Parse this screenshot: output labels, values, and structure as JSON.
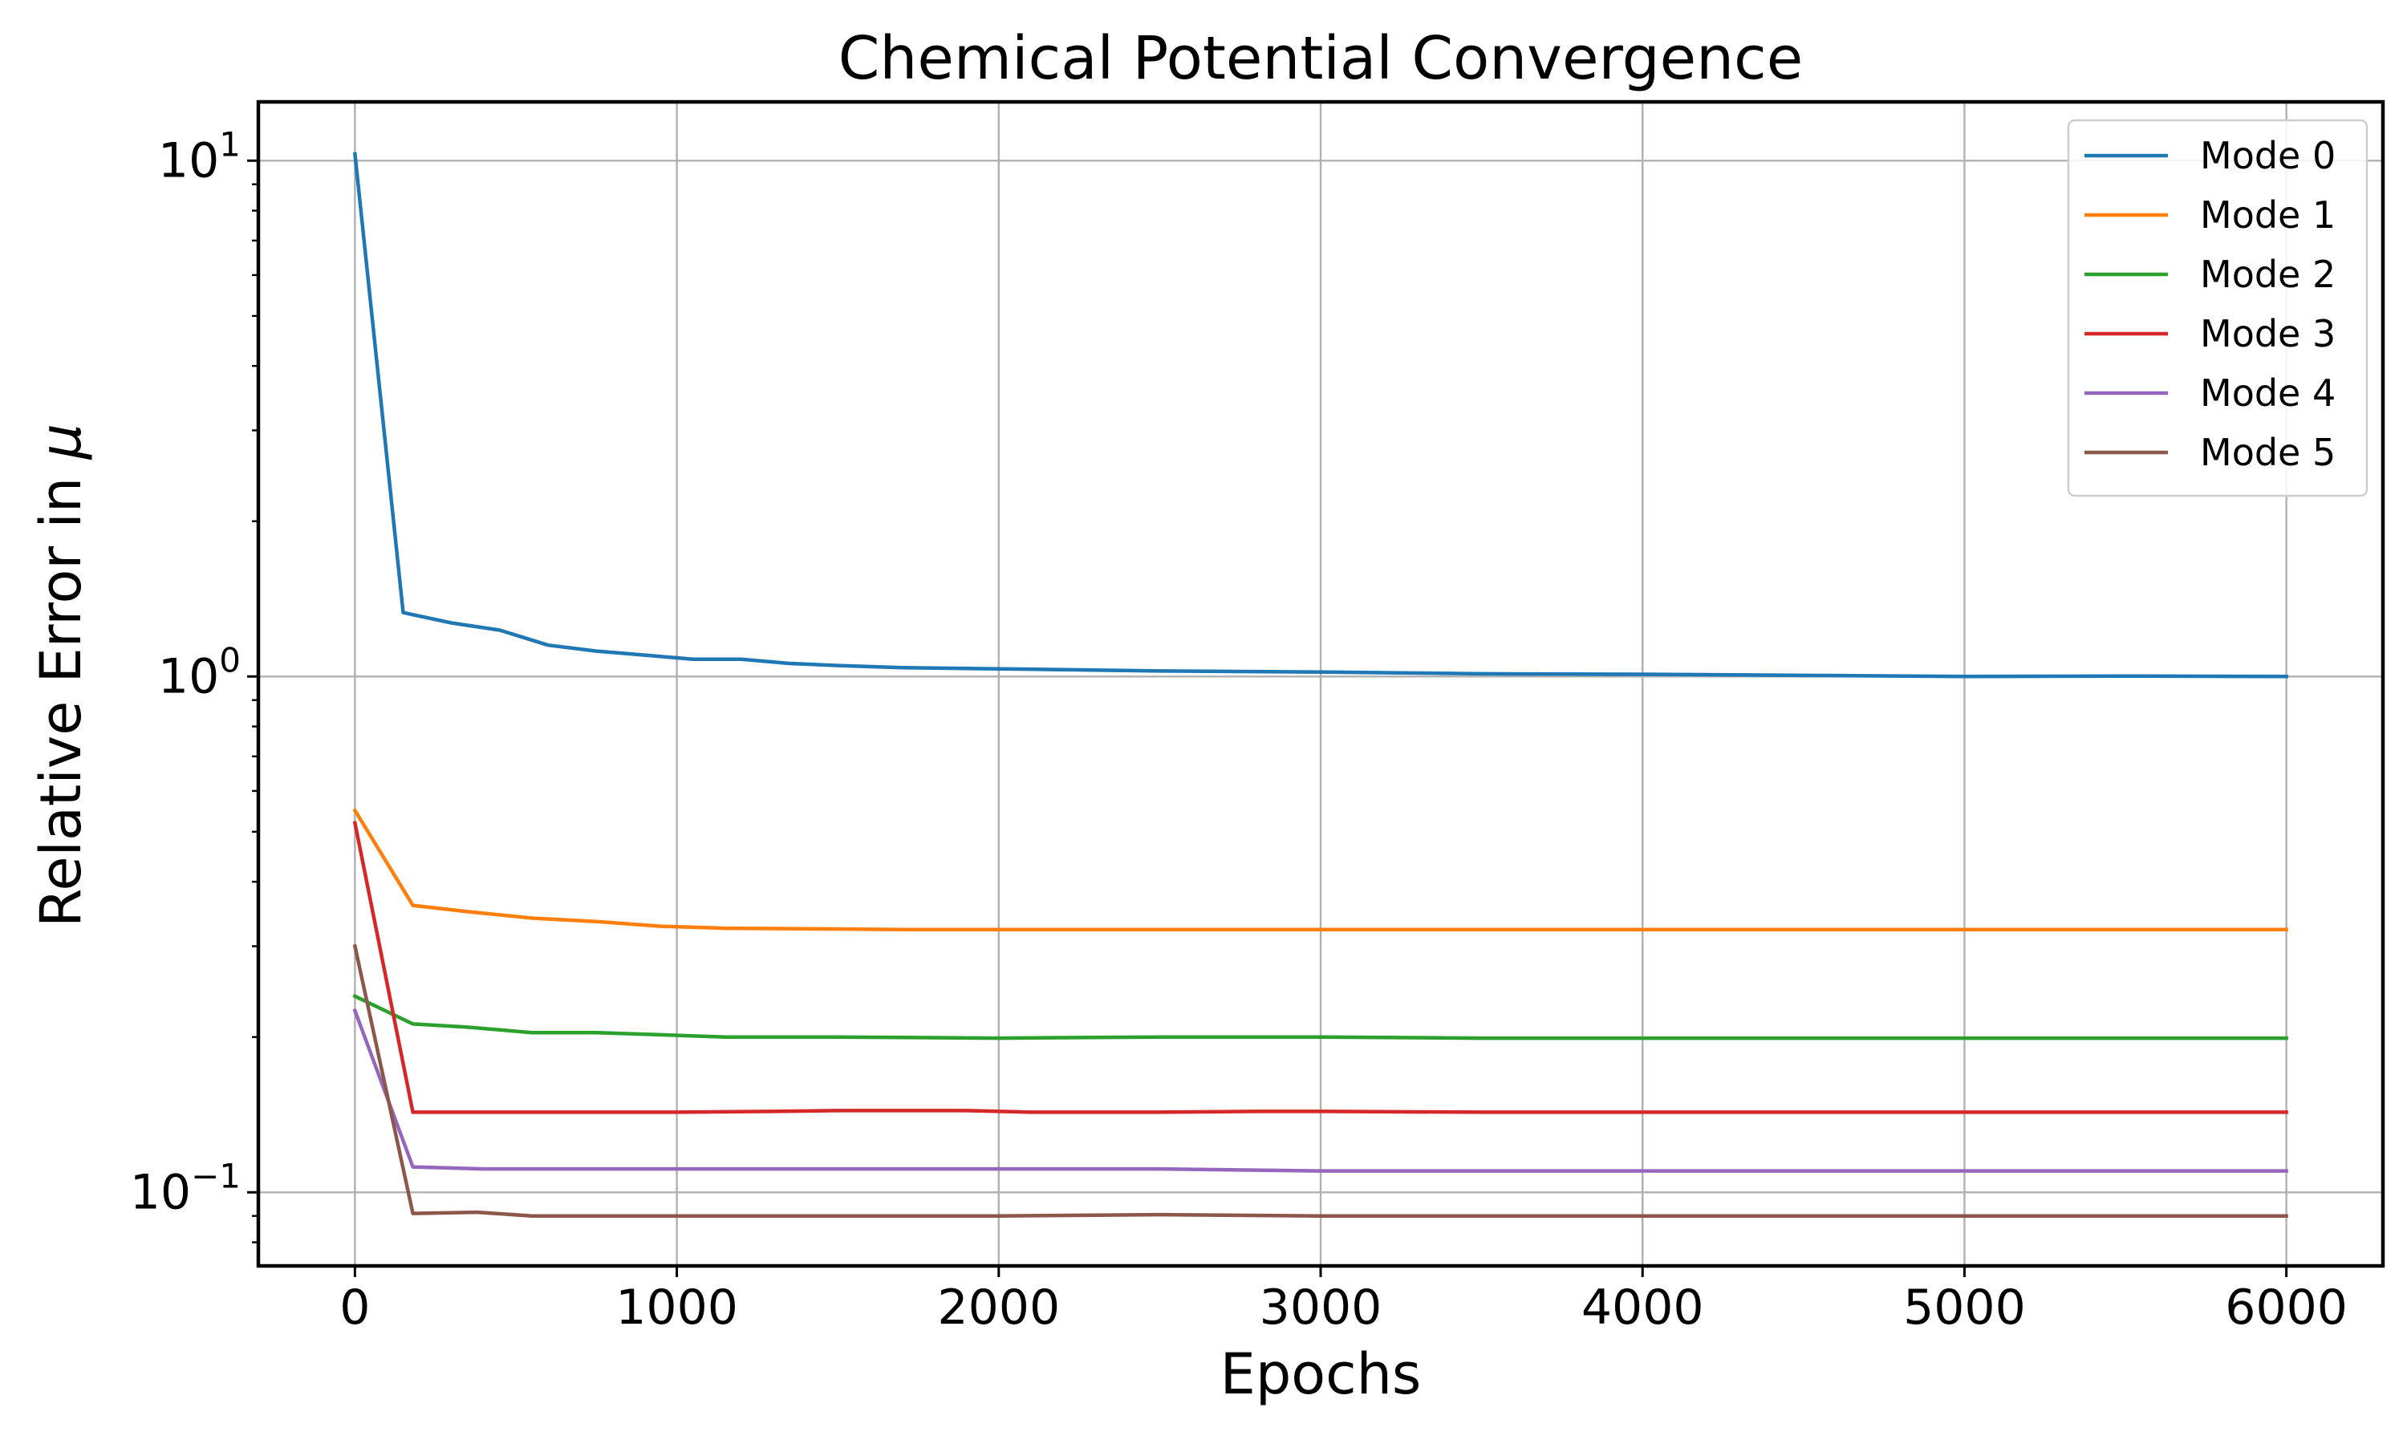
{
  "chart_data": {
    "type": "line",
    "title": "Chemical Potential Convergence",
    "xlabel": "Epochs",
    "ylabel": "Relative Error in μ",
    "yscale": "log",
    "xlim": [
      -300,
      6300
    ],
    "ylim": [
      0.072,
      13.0
    ],
    "x_ticks": [
      0,
      1000,
      2000,
      3000,
      4000,
      5000,
      6000
    ],
    "x_tick_labels": [
      "0",
      "1000",
      "2000",
      "3000",
      "4000",
      "5000",
      "6000"
    ],
    "y_ticks": [
      0.1,
      1,
      10
    ],
    "y_tick_labels": [
      {
        "base": "10",
        "exp": "−1"
      },
      {
        "base": "10",
        "exp": "0"
      },
      {
        "base": "10",
        "exp": "1"
      }
    ],
    "grid": true,
    "legend_position": "top-right",
    "series": [
      {
        "name": "Mode 0",
        "color": "#1f77b4",
        "x": [
          0,
          150,
          300,
          450,
          600,
          750,
          900,
          1050,
          1200,
          1350,
          1500,
          1700,
          2000,
          2500,
          3000,
          3500,
          4000,
          4500,
          5000,
          5500,
          6000
        ],
        "y": [
          10.3,
          1.33,
          1.27,
          1.23,
          1.15,
          1.12,
          1.1,
          1.08,
          1.08,
          1.06,
          1.05,
          1.04,
          1.035,
          1.025,
          1.02,
          1.012,
          1.01,
          1.005,
          1.0,
          1.002,
          1.0
        ]
      },
      {
        "name": "Mode 1",
        "color": "#ff7f0e",
        "x": [
          0,
          180,
          350,
          550,
          750,
          950,
          1150,
          1500,
          1700,
          2000,
          3000,
          4000,
          5000,
          6000
        ],
        "y": [
          0.55,
          0.36,
          0.35,
          0.34,
          0.335,
          0.328,
          0.325,
          0.324,
          0.323,
          0.323,
          0.323,
          0.323,
          0.323,
          0.323
        ]
      },
      {
        "name": "Mode 2",
        "color": "#2ca02c",
        "x": [
          0,
          180,
          350,
          550,
          750,
          950,
          1150,
          1500,
          2000,
          2500,
          3000,
          3500,
          4000,
          5000,
          6000
        ],
        "y": [
          0.24,
          0.212,
          0.209,
          0.204,
          0.204,
          0.202,
          0.2,
          0.2,
          0.199,
          0.2,
          0.2,
          0.199,
          0.199,
          0.199,
          0.199
        ]
      },
      {
        "name": "Mode 3",
        "color": "#d62728",
        "x": [
          0,
          180,
          500,
          1000,
          1300,
          1500,
          1900,
          2100,
          2500,
          2800,
          3000,
          3500,
          4000,
          4500,
          5000,
          6000
        ],
        "y": [
          0.52,
          0.143,
          0.143,
          0.143,
          0.1435,
          0.144,
          0.144,
          0.143,
          0.143,
          0.1435,
          0.1435,
          0.143,
          0.143,
          0.143,
          0.143,
          0.143
        ]
      },
      {
        "name": "Mode 4",
        "color": "#9467bd",
        "x": [
          0,
          180,
          400,
          1000,
          2000,
          2500,
          3000,
          4000,
          5000,
          6000
        ],
        "y": [
          0.225,
          0.112,
          0.111,
          0.111,
          0.111,
          0.111,
          0.11,
          0.11,
          0.11,
          0.11
        ]
      },
      {
        "name": "Mode 5",
        "color": "#8c564b",
        "x": [
          0,
          180,
          380,
          550,
          1000,
          2000,
          2500,
          3000,
          4000,
          5000,
          6000
        ],
        "y": [
          0.3,
          0.091,
          0.0915,
          0.09,
          0.09,
          0.09,
          0.0905,
          0.09,
          0.09,
          0.09,
          0.09
        ]
      }
    ]
  }
}
